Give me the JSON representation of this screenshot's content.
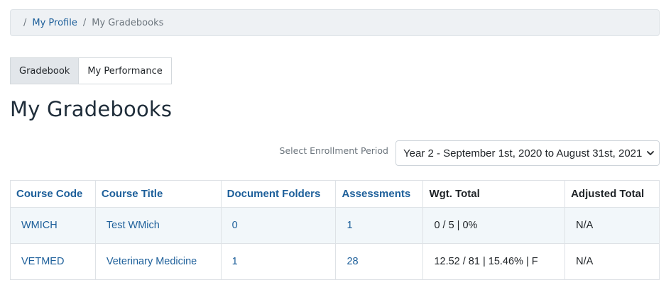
{
  "breadcrumb": {
    "separator": "/",
    "items": [
      {
        "label": "My Profile"
      },
      {
        "label": "My Gradebooks"
      }
    ]
  },
  "tabs": [
    {
      "label": "Gradebook",
      "active": true
    },
    {
      "label": "My Performance",
      "active": false
    }
  ],
  "page_title": "My Gradebooks",
  "enrollment": {
    "label": "Select Enrollment Period",
    "selected": "Year 2 - September 1st, 2020 to August 31st, 2021"
  },
  "table": {
    "headers": [
      "Course Code",
      "Course Title",
      "Document Folders",
      "Assessments",
      "Wgt. Total",
      "Adjusted Total"
    ],
    "rows": [
      {
        "code": "WMICH",
        "title": "Test WMich",
        "folders": "0",
        "assessments": "1",
        "wgt_total": "0 / 5 | 0%",
        "adjusted": "N/A"
      },
      {
        "code": "VETMED",
        "title": "Veterinary Medicine",
        "folders": "1",
        "assessments": "28",
        "wgt_total": "12.52 / 81 | 15.46% | F",
        "adjusted": "N/A"
      }
    ]
  },
  "colors": {
    "link": "#1d5f9a",
    "row_highlight": "#f2f7fa"
  }
}
